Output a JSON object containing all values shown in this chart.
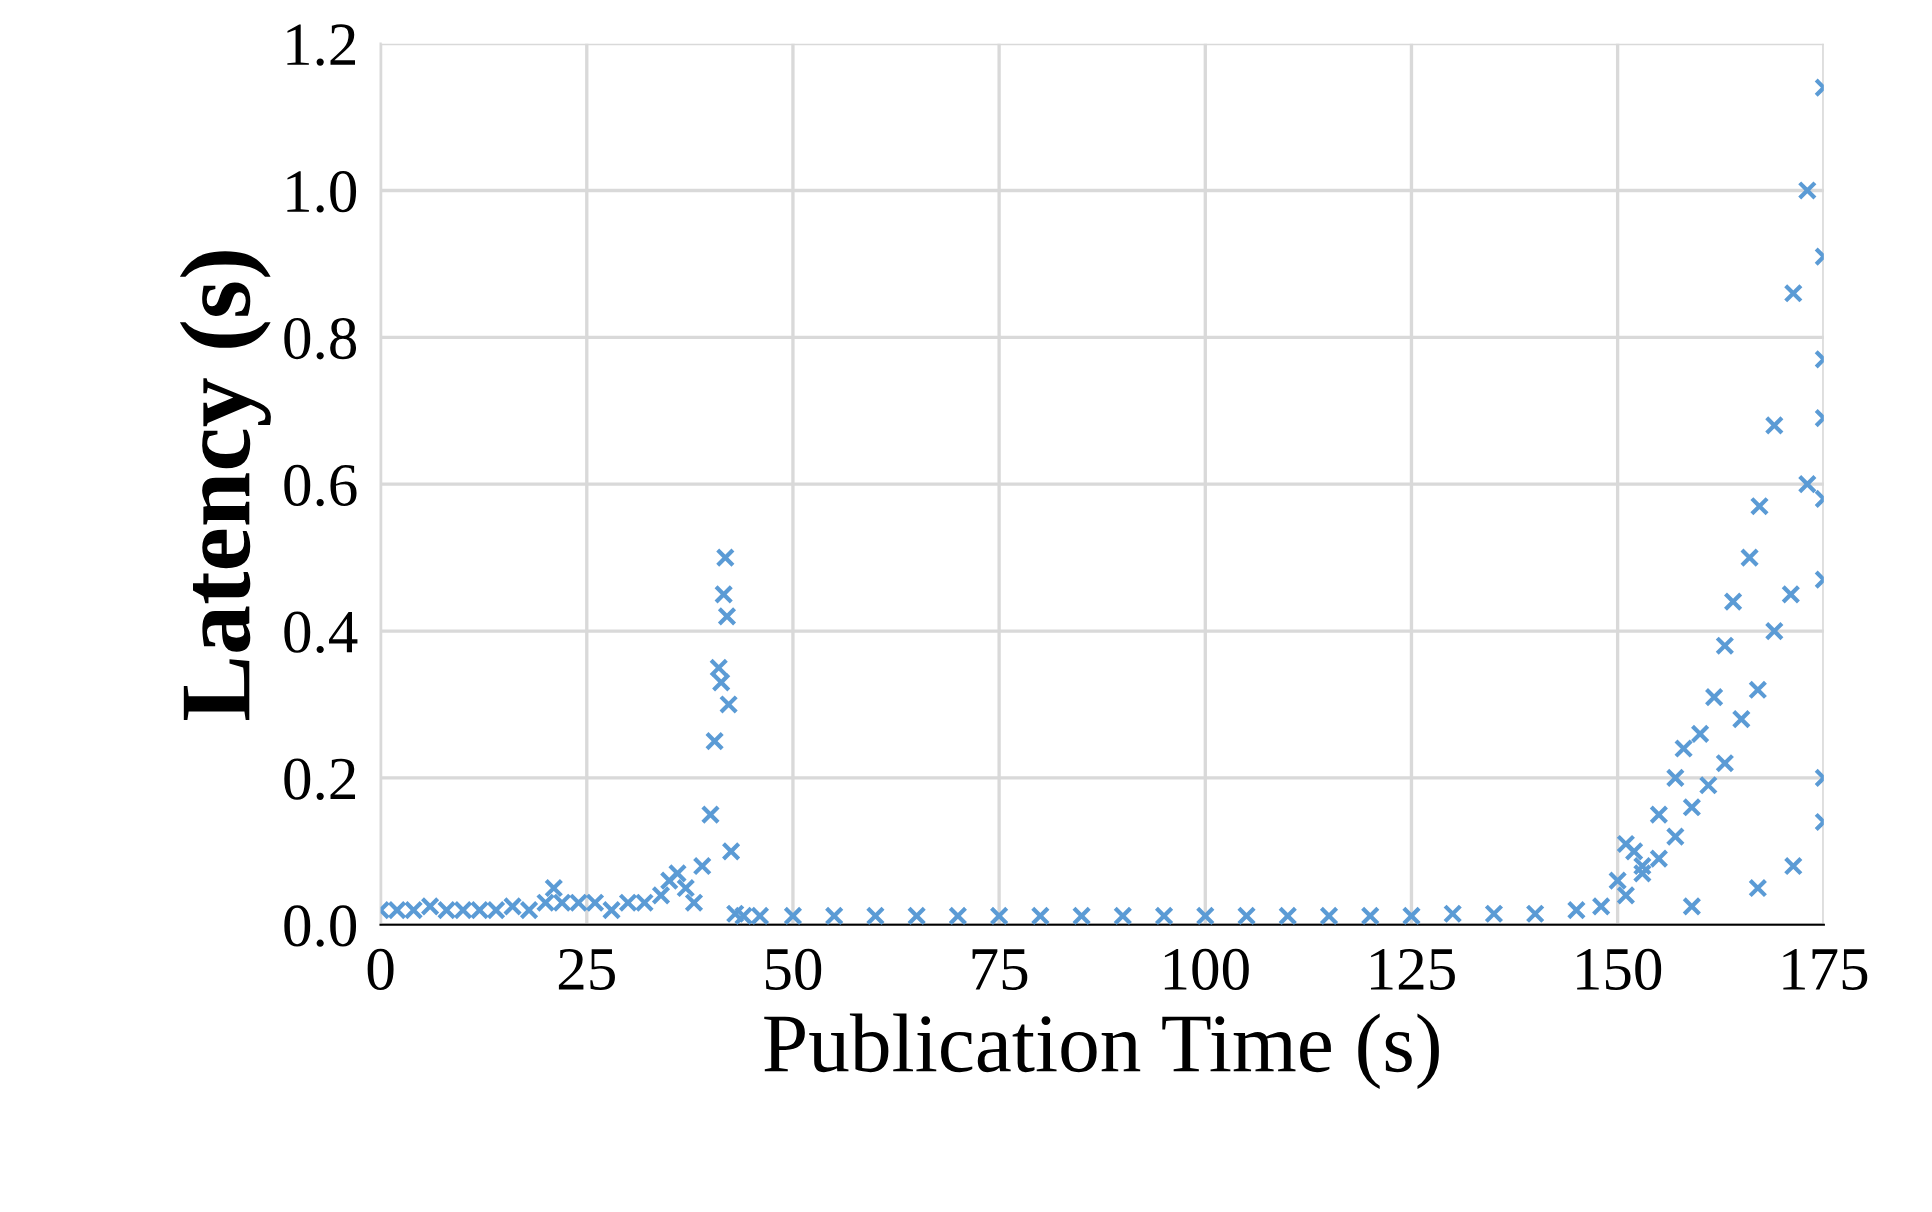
{
  "chart_data": {
    "type": "scatter",
    "xlabel": "Publication Time (s)",
    "ylabel": "Latency (s)",
    "xlim": [
      0,
      175
    ],
    "ylim": [
      0,
      1.2
    ],
    "xticks": [
      0,
      25,
      50,
      75,
      100,
      125,
      150,
      175
    ],
    "yticks": [
      {
        "value": 0,
        "label": "0.0"
      },
      0.2,
      0.4,
      0.6,
      0.8,
      {
        "value": 1.0,
        "label": "1.0"
      },
      1.2
    ],
    "grid": true,
    "marker": "cross",
    "series": [
      {
        "color": "#5b9bd5",
        "x": [
          0,
          2,
          4,
          6,
          8,
          10,
          12,
          14,
          16,
          18,
          20,
          21,
          22,
          24,
          26,
          28,
          30,
          32,
          34,
          35,
          36,
          37,
          38,
          39,
          40,
          40.5,
          41,
          41.3,
          41.6,
          41.8,
          42,
          42.2,
          42.5,
          43,
          44,
          46,
          50,
          55,
          60,
          65,
          70,
          75,
          80,
          85,
          90,
          95,
          100,
          105,
          110,
          115,
          120,
          125,
          130,
          135,
          140,
          145,
          148,
          150,
          151,
          152,
          153,
          155,
          157,
          158,
          160,
          161.7,
          163,
          164,
          166,
          167.2,
          169,
          171.3,
          173,
          175,
          175,
          175,
          175,
          175,
          175,
          175,
          173,
          171,
          169,
          167,
          165,
          163,
          161,
          159,
          157,
          155,
          153,
          151,
          167,
          159,
          171.3,
          175
        ],
        "values": [
          0.02,
          0.02,
          0.02,
          0.025,
          0.02,
          0.02,
          0.02,
          0.02,
          0.025,
          0.02,
          0.03,
          0.05,
          0.03,
          0.03,
          0.03,
          0.02,
          0.03,
          0.03,
          0.04,
          0.06,
          0.07,
          0.05,
          0.03,
          0.08,
          0.15,
          0.25,
          0.35,
          0.33,
          0.45,
          0.5,
          0.42,
          0.3,
          0.1,
          0.015,
          0.012,
          0.012,
          0.012,
          0.012,
          0.012,
          0.012,
          0.012,
          0.012,
          0.012,
          0.012,
          0.012,
          0.012,
          0.012,
          0.012,
          0.012,
          0.012,
          0.012,
          0.012,
          0.015,
          0.015,
          0.015,
          0.02,
          0.025,
          0.06,
          0.11,
          0.1,
          0.08,
          0.15,
          0.2,
          0.24,
          0.26,
          0.31,
          0.38,
          0.44,
          0.5,
          0.57,
          0.68,
          0.86,
          1.0,
          1.14,
          0.91,
          0.77,
          0.69,
          0.58,
          0.47,
          0.14,
          0.6,
          0.45,
          0.4,
          0.32,
          0.28,
          0.22,
          0.19,
          0.16,
          0.12,
          0.09,
          0.07,
          0.04,
          0.05,
          0.025,
          0.08,
          0.2
        ]
      }
    ]
  }
}
